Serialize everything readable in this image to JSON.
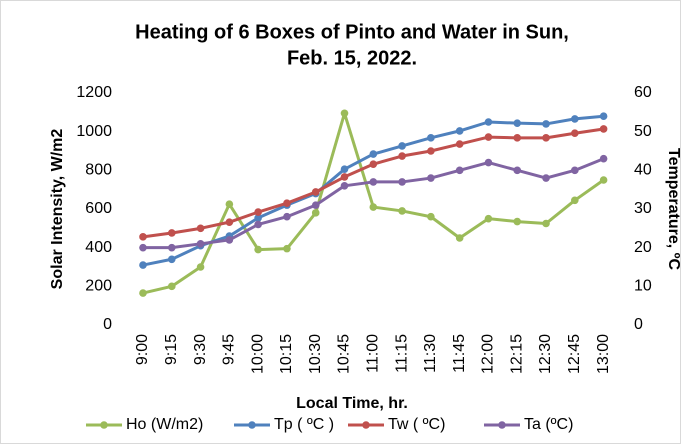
{
  "chart_data": {
    "type": "line",
    "title": [
      "Heating of 6 Boxes of Pinto and Water in Sun,",
      "Feb. 15, 2022."
    ],
    "x_label": "Local Time, hr.",
    "y_label": "Solar Intensity, W/m2",
    "y2_label": "Temperature, ºC",
    "categories": [
      "9:00",
      "9:15",
      "9:30",
      "9:45",
      "10:00",
      "10:15",
      "10:30",
      "10:45",
      "11:00",
      "11:15",
      "11:30",
      "11:45",
      "12:00",
      "12:15",
      "12:30",
      "12:45",
      "13:00"
    ],
    "ylim": [
      0,
      1200
    ],
    "yticks": [
      0,
      200,
      400,
      600,
      800,
      1000,
      1200
    ],
    "y2lim": [
      0,
      60
    ],
    "y2ticks": [
      0,
      10,
      20,
      30,
      40,
      50,
      60
    ],
    "grid": false,
    "legend": "bottom",
    "series": [
      {
        "name": "Ho (W/m2)",
        "color": "#9bbb59",
        "values": [
          165,
          200,
          300,
          625,
          390,
          395,
          580,
          1095,
          610,
          590,
          560,
          450,
          550,
          535,
          525,
          645,
          750
        ]
      },
      {
        "name": "Tp ( ºC )",
        "color": "#4f81bd",
        "axis": "y2",
        "values": [
          15.5,
          17,
          20.5,
          23,
          27.7,
          31,
          34,
          40.3,
          44.2,
          46.3,
          48.4,
          50.2,
          52.5,
          52.2,
          52,
          53.3,
          54
        ]
      },
      {
        "name": "Tw ( ºC)",
        "color": "#c0504d",
        "axis": "y2",
        "values": [
          22.8,
          23.8,
          25,
          26.6,
          29.2,
          31.5,
          34.4,
          38.3,
          41.6,
          43.7,
          45,
          46.8,
          48.6,
          48.4,
          48.4,
          49.6,
          50.7
        ]
      },
      {
        "name": "Ta (ºC)",
        "color": "#8064a2",
        "axis": "y2",
        "values": [
          20,
          20,
          21,
          22,
          26,
          28,
          31,
          36,
          37,
          37,
          38,
          40,
          42,
          40,
          38,
          40,
          43
        ]
      }
    ]
  }
}
